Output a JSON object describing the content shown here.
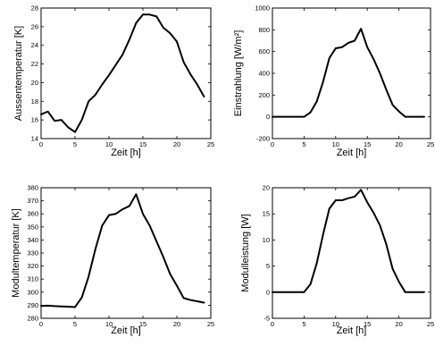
{
  "chart_data": [
    {
      "id": "aussentemperatur",
      "type": "line",
      "xlabel": "Zeit [h]",
      "ylabel": "Aussentemperatur [K]",
      "xlim": [
        0,
        25
      ],
      "ylim": [
        14,
        28
      ],
      "xticks": [
        0,
        5,
        10,
        15,
        20,
        25
      ],
      "xtick_labels": [
        "0",
        "5",
        "10",
        "15",
        "20",
        "25"
      ],
      "yticks": [
        14,
        16,
        18,
        20,
        22,
        24,
        26,
        28
      ],
      "ytick_labels": [
        "14",
        "16",
        "18",
        "20",
        "22",
        "24",
        "26",
        "28"
      ],
      "grid": false,
      "series": [
        {
          "x": [
            0,
            1,
            2,
            3,
            4,
            5,
            6,
            7,
            8,
            9,
            10,
            11,
            12,
            13,
            14,
            15,
            16,
            17,
            18,
            19,
            20,
            21,
            22,
            23,
            24
          ],
          "y": [
            16.6,
            16.9,
            15.9,
            16.0,
            15.2,
            14.7,
            16.0,
            18.0,
            18.7,
            19.8,
            20.8,
            21.9,
            23.0,
            24.6,
            26.4,
            27.3,
            27.3,
            27.1,
            25.9,
            25.3,
            24.4,
            22.2,
            20.9,
            19.8,
            18.5
          ]
        }
      ]
    },
    {
      "id": "einstrahlung",
      "type": "line",
      "xlabel": "Zeit [h]",
      "ylabel": "Einstrahlung [W/m²]",
      "xlim": [
        0,
        25
      ],
      "ylim": [
        -200,
        1000
      ],
      "xticks": [
        0,
        5,
        10,
        15,
        20,
        25
      ],
      "xtick_labels": [
        "0",
        "5",
        "10",
        "15",
        "20",
        "25"
      ],
      "yticks": [
        -200,
        0,
        200,
        400,
        600,
        800,
        1000
      ],
      "ytick_labels": [
        "-200",
        "0",
        "200",
        "400",
        "600",
        "800",
        "1000"
      ],
      "grid": false,
      "series": [
        {
          "x": [
            0,
            1,
            2,
            3,
            4,
            5,
            6,
            7,
            8,
            9,
            10,
            11,
            12,
            13,
            14,
            15,
            16,
            17,
            18,
            19,
            20,
            21,
            22,
            23,
            24
          ],
          "y": [
            0,
            0,
            0,
            0,
            0,
            0,
            40,
            140,
            320,
            540,
            630,
            640,
            680,
            700,
            810,
            640,
            530,
            400,
            250,
            110,
            50,
            0,
            0,
            0,
            0
          ]
        }
      ]
    },
    {
      "id": "modultemperatur",
      "type": "line",
      "xlabel": "Zeit [h]",
      "ylabel": "Modultemperatur [K]",
      "xlim": [
        0,
        25
      ],
      "ylim": [
        280,
        380
      ],
      "xticks": [
        0,
        5,
        10,
        15,
        20,
        25
      ],
      "xtick_labels": [
        "0",
        "5",
        "10",
        "15",
        "20",
        "25"
      ],
      "yticks": [
        280,
        290,
        300,
        310,
        320,
        330,
        340,
        350,
        360,
        370,
        380
      ],
      "ytick_labels": [
        "280",
        "290",
        "300",
        "310",
        "320",
        "330",
        "340",
        "350",
        "360",
        "370",
        "380"
      ],
      "grid": false,
      "series": [
        {
          "x": [
            0,
            1,
            2,
            3,
            4,
            5,
            6,
            7,
            8,
            9,
            10,
            11,
            12,
            13,
            14,
            15,
            16,
            17,
            18,
            19,
            20,
            21,
            22,
            23,
            24
          ],
          "y": [
            289.5,
            289.7,
            289.3,
            289.1,
            288.9,
            288.6,
            296.0,
            312.0,
            333.0,
            351.0,
            359.0,
            360.0,
            363.5,
            366.0,
            375.0,
            360.0,
            351.0,
            339.0,
            327.0,
            314.0,
            305.0,
            295.5,
            294.0,
            293.0,
            292.0
          ]
        }
      ]
    },
    {
      "id": "modulleistung",
      "type": "line",
      "xlabel": "Zeit [h]",
      "ylabel": "Modulleistung [W]",
      "xlim": [
        0,
        25
      ],
      "ylim": [
        -5,
        20
      ],
      "xticks": [
        0,
        5,
        10,
        15,
        20,
        25
      ],
      "xtick_labels": [
        "0",
        "5",
        "10",
        "15",
        "20",
        "25"
      ],
      "yticks": [
        -5,
        0,
        5,
        10,
        15,
        20
      ],
      "ytick_labels": [
        "-5",
        "0",
        "5",
        "10",
        "15",
        "20"
      ],
      "grid": false,
      "series": [
        {
          "x": [
            0,
            1,
            2,
            3,
            4,
            5,
            6,
            7,
            8,
            9,
            10,
            11,
            12,
            13,
            14,
            15,
            16,
            17,
            18,
            19,
            20,
            21,
            22,
            23,
            24
          ],
          "y": [
            0,
            0,
            0,
            0,
            0,
            0,
            1.5,
            5.5,
            11.0,
            16.0,
            17.6,
            17.6,
            18.0,
            18.3,
            19.6,
            17.2,
            15.2,
            12.8,
            9.2,
            4.5,
            2.0,
            0,
            0,
            0,
            0
          ]
        }
      ]
    }
  ]
}
